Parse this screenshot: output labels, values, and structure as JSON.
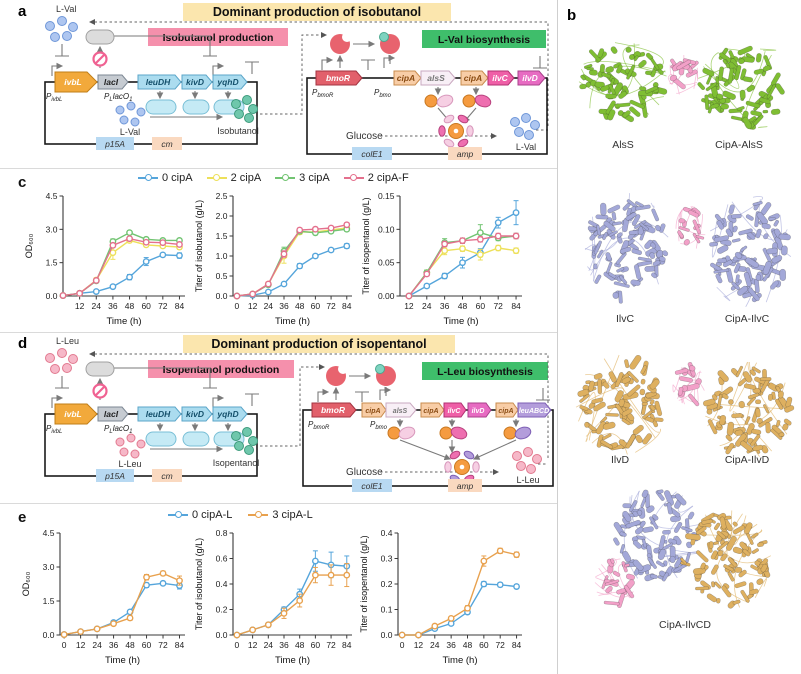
{
  "figure": {
    "panel_labels": {
      "a": "a",
      "b": "b",
      "c": "c",
      "d": "d",
      "e": "e"
    }
  },
  "panel_a": {
    "title": "Dominant production of isobutanol",
    "production_label": "Isobutanol production",
    "biosynthesis_label": "L-Val biosynthesis",
    "feedback_metabolite": "L-Val",
    "plasmid1": {
      "promoter1": {
        "p": "P",
        "sub": "ivbL"
      },
      "promoter2": {
        "p": "P",
        "sub1": "L",
        "mid": "lacO",
        "sub2": "1"
      },
      "genes": {
        "ivbL": "ivbL",
        "lacI": "lacI",
        "leuDH": "leuDH",
        "kivD": "kivD",
        "yqhD": "yqhD"
      },
      "metabolite": "L-Val",
      "product": "Isobutanol",
      "ori": "p15A",
      "marker": "cm"
    },
    "plasmid2": {
      "promoter1": {
        "p": "P",
        "sub": "bmoR"
      },
      "promoter2": {
        "p": "P",
        "sub": "bmo"
      },
      "genes": {
        "bmoR": "bmoR",
        "cipA1": "cipA",
        "alsS": "alsS",
        "cipA2": "cipA",
        "ilvC": "ilvC",
        "ilvD": "ilvD"
      },
      "substrate": "Glucose",
      "product": "L-Val",
      "ori": "colE1",
      "marker": "amp"
    }
  },
  "panel_d": {
    "title": "Dominant production of isopentanol",
    "production_label": "Isopentanol production",
    "biosynthesis_label": "L-Leu biosynthesis",
    "feedback_metabolite": "L-Leu",
    "plasmid1": {
      "promoter1": {
        "p": "P",
        "sub": "ivbL"
      },
      "promoter2": {
        "p": "P",
        "sub1": "L",
        "mid": "lacO",
        "sub2": "1"
      },
      "genes": {
        "ivbL": "ivbL",
        "lacI": "lacI",
        "leuDH": "leuDH",
        "kivD": "kivD",
        "yqhD": "yqhD"
      },
      "metabolite": "L-Leu",
      "product": "Isopentanol",
      "ori": "p15A",
      "marker": "cm"
    },
    "plasmid2": {
      "promoter1": {
        "p": "P",
        "sub": "bmoR"
      },
      "promoter2": {
        "p": "P",
        "sub": "bmo"
      },
      "genes": {
        "bmoR": "bmoR",
        "cipA1": "cipA",
        "alsS": "alsS",
        "cipA2": "cipA",
        "ilvC": "ilvC",
        "ilvD": "ilvD",
        "cipA3": "cipA",
        "leuABCD": "leuABCD"
      },
      "substrate": "Glucose",
      "product": "L-Leu",
      "ori": "colE1",
      "marker": "amp"
    }
  },
  "panel_b": {
    "labels": [
      "AlsS",
      "CipA-AlsS",
      "IlvC",
      "CipA-IlvC",
      "IlvD",
      "CipA-IlvD",
      "CipA-IlvCD"
    ],
    "colors": {
      "alsS": "#7FBE33",
      "cipA": "#F2A0C8",
      "ilvC": "#A3A8D8",
      "ilvD": "#DEB060"
    }
  },
  "chart_data": [
    {
      "type": "line",
      "title": "",
      "xlabel": "Time (h)",
      "ylabel": "OD₆₀₀",
      "xlim": [
        0,
        88
      ],
      "ylim": [
        0,
        4.5
      ],
      "xticks": [
        12,
        24,
        36,
        48,
        60,
        72,
        84
      ],
      "yticks": [
        0,
        1.5,
        3,
        4.5
      ],
      "ydec": 1,
      "series": [
        {
          "name": "0 cipA",
          "color": "#55A5DB",
          "x": [
            0,
            12,
            24,
            36,
            48,
            60,
            72,
            84
          ],
          "y": [
            0.02,
            0.12,
            0.2,
            0.42,
            0.85,
            1.55,
            1.85,
            1.82
          ],
          "err": [
            0,
            0,
            0,
            0.06,
            0.12,
            0.18,
            0.08,
            0.12
          ]
        },
        {
          "name": "2 cipA",
          "color": "#EDE05A",
          "x": [
            0,
            12,
            24,
            36,
            48,
            60,
            72,
            84
          ],
          "y": [
            0.02,
            0.12,
            0.72,
            1.95,
            2.5,
            2.3,
            2.25,
            2.2
          ],
          "err": [
            0,
            0,
            0.1,
            0.3,
            0.1,
            0.08,
            0.08,
            0.1
          ]
        },
        {
          "name": "3 cipA",
          "color": "#72C472",
          "x": [
            0,
            12,
            24,
            36,
            48,
            60,
            72,
            84
          ],
          "y": [
            0.02,
            0.12,
            0.68,
            2.45,
            2.85,
            2.55,
            2.5,
            2.5
          ],
          "err": [
            0,
            0,
            0.08,
            0.12,
            0.08,
            0.08,
            0.06,
            0.08
          ]
        },
        {
          "name": "2 cipA-F",
          "color": "#E4708D",
          "x": [
            0,
            12,
            24,
            36,
            48,
            60,
            72,
            84
          ],
          "y": [
            0.02,
            0.12,
            0.7,
            2.28,
            2.58,
            2.42,
            2.4,
            2.32
          ],
          "err": [
            0,
            0,
            0.08,
            0.1,
            0.08,
            0.06,
            0.06,
            0.08
          ]
        }
      ]
    },
    {
      "type": "line",
      "title": "",
      "xlabel": "Time (h)",
      "ylabel": "Titer of isobutanol (g/L)",
      "xlim": [
        -3,
        88
      ],
      "ylim": [
        0,
        2.5
      ],
      "xticks": [
        0,
        12,
        24,
        36,
        48,
        60,
        72,
        84
      ],
      "yticks": [
        0,
        0.5,
        1,
        1.5,
        2,
        2.5
      ],
      "ydec": 1,
      "series": [
        {
          "name": "0 cipA",
          "color": "#55A5DB",
          "x": [
            0,
            12,
            24,
            36,
            48,
            60,
            72,
            84
          ],
          "y": [
            0,
            0.02,
            0.1,
            0.3,
            0.75,
            1.0,
            1.15,
            1.25
          ],
          "err": [
            0,
            0,
            0.02,
            0.04,
            0.06,
            0.05,
            0.05,
            0.06
          ]
        },
        {
          "name": "2 cipA",
          "color": "#EDE05A",
          "x": [
            0,
            12,
            24,
            36,
            48,
            60,
            72,
            84
          ],
          "y": [
            0,
            0.05,
            0.3,
            1.0,
            1.6,
            1.6,
            1.65,
            1.7
          ],
          "err": [
            0,
            0,
            0.05,
            0.18,
            0.06,
            0.05,
            0.05,
            0.06
          ]
        },
        {
          "name": "3 cipA",
          "color": "#72C472",
          "x": [
            0,
            12,
            24,
            36,
            48,
            60,
            72,
            84
          ],
          "y": [
            0,
            0.05,
            0.28,
            1.12,
            1.62,
            1.58,
            1.62,
            1.67
          ],
          "err": [
            0,
            0,
            0.04,
            0.1,
            0.06,
            0.05,
            0.05,
            0.05
          ]
        },
        {
          "name": "2 cipA-F",
          "color": "#E4708D",
          "x": [
            0,
            12,
            24,
            36,
            48,
            60,
            72,
            84
          ],
          "y": [
            0,
            0.05,
            0.3,
            1.05,
            1.65,
            1.67,
            1.7,
            1.78
          ],
          "err": [
            0,
            0,
            0.04,
            0.08,
            0.05,
            0.05,
            0.05,
            0.05
          ]
        }
      ]
    },
    {
      "type": "line",
      "title": "",
      "xlabel": "Time (h)",
      "ylabel": "Titer of isopentanol (g/L)",
      "xlim": [
        6,
        88
      ],
      "ylim": [
        0,
        0.15
      ],
      "xticks": [
        12,
        24,
        36,
        48,
        60,
        72,
        84
      ],
      "yticks": [
        0,
        0.05,
        0.1,
        0.15
      ],
      "ydec": 2,
      "series": [
        {
          "name": "0 cipA",
          "color": "#55A5DB",
          "x": [
            12,
            24,
            36,
            48,
            60,
            72,
            84
          ],
          "y": [
            0,
            0.015,
            0.03,
            0.05,
            0.065,
            0.11,
            0.125
          ],
          "err": [
            0,
            0.003,
            0.004,
            0.008,
            0.006,
            0.008,
            0.018
          ]
        },
        {
          "name": "2 cipA",
          "color": "#EDE05A",
          "x": [
            12,
            24,
            36,
            48,
            60,
            72,
            84
          ],
          "y": [
            0,
            0.035,
            0.068,
            0.071,
            0.062,
            0.072,
            0.068
          ],
          "err": [
            0,
            0.004,
            0.006,
            0.004,
            0.008,
            0.004,
            0.004
          ]
        },
        {
          "name": "3 cipA",
          "color": "#72C472",
          "x": [
            12,
            24,
            36,
            48,
            60,
            72,
            84
          ],
          "y": [
            0,
            0.035,
            0.08,
            0.083,
            0.095,
            0.087,
            0.09
          ],
          "err": [
            0,
            0.004,
            0.006,
            0.004,
            0.012,
            0.004,
            0.004
          ]
        },
        {
          "name": "2 cipA-F",
          "color": "#E4708D",
          "x": [
            12,
            24,
            36,
            48,
            60,
            72,
            84
          ],
          "y": [
            0,
            0.033,
            0.078,
            0.083,
            0.085,
            0.09,
            0.09
          ],
          "err": [
            0,
            0.003,
            0.004,
            0.004,
            0.004,
            0.004,
            0.004
          ]
        }
      ]
    },
    {
      "type": "line",
      "title": "",
      "xlabel": "Time (h)",
      "ylabel": "OD₆₀₀",
      "xlim": [
        -3,
        88
      ],
      "ylim": [
        0,
        4.5
      ],
      "xticks": [
        0,
        12,
        24,
        36,
        48,
        60,
        72,
        84
      ],
      "yticks": [
        0,
        1.5,
        3,
        4.5
      ],
      "ydec": 1,
      "series": [
        {
          "name": "0 cipA-L",
          "color": "#55A5DB",
          "x": [
            0,
            12,
            24,
            36,
            48,
            60,
            72,
            84
          ],
          "y": [
            0.02,
            0.15,
            0.27,
            0.55,
            1.02,
            2.2,
            2.28,
            2.18
          ],
          "err": [
            0,
            0,
            0,
            0,
            0.08,
            0.1,
            0.08,
            0.15
          ]
        },
        {
          "name": "3 cipA-L",
          "color": "#E8A14E",
          "x": [
            0,
            12,
            24,
            36,
            48,
            60,
            72,
            84
          ],
          "y": [
            0.02,
            0.15,
            0.27,
            0.5,
            0.75,
            2.55,
            2.72,
            2.4
          ],
          "err": [
            0,
            0,
            0,
            0.08,
            0.1,
            0.12,
            0.1,
            0.2
          ]
        }
      ]
    },
    {
      "type": "line",
      "title": "",
      "xlabel": "Time (h)",
      "ylabel": "Titer of isobutanol (g/L)",
      "xlim": [
        -3,
        88
      ],
      "ylim": [
        0,
        0.8
      ],
      "xticks": [
        0,
        12,
        24,
        36,
        48,
        60,
        72,
        84
      ],
      "yticks": [
        0,
        0.2,
        0.4,
        0.6,
        0.8
      ],
      "ydec": 1,
      "series": [
        {
          "name": "0 cipA-L",
          "color": "#55A5DB",
          "x": [
            0,
            12,
            24,
            36,
            48,
            60,
            72,
            84
          ],
          "y": [
            0,
            0.04,
            0.08,
            0.2,
            0.32,
            0.58,
            0.55,
            0.54
          ],
          "err": [
            0,
            0,
            0,
            0.02,
            0.04,
            0.08,
            0.1,
            0.08
          ]
        },
        {
          "name": "3 cipA-L",
          "color": "#E8A14E",
          "x": [
            0,
            12,
            24,
            36,
            48,
            60,
            72,
            84
          ],
          "y": [
            0,
            0.04,
            0.08,
            0.17,
            0.27,
            0.47,
            0.47,
            0.47
          ],
          "err": [
            0,
            0,
            0,
            0.04,
            0.05,
            0.06,
            0.08,
            0.09
          ]
        }
      ]
    },
    {
      "type": "line",
      "title": "",
      "xlabel": "Time (h)",
      "ylabel": "Titer of isopentanol (g/L)",
      "xlim": [
        -3,
        88
      ],
      "ylim": [
        0,
        0.4
      ],
      "xticks": [
        0,
        12,
        24,
        36,
        48,
        60,
        72,
        84
      ],
      "yticks": [
        0,
        0.1,
        0.2,
        0.3,
        0.4
      ],
      "ydec": 1,
      "series": [
        {
          "name": "0 cipA-L",
          "color": "#55A5DB",
          "x": [
            0,
            12,
            24,
            36,
            48,
            60,
            72,
            84
          ],
          "y": [
            0,
            0,
            0.025,
            0.045,
            0.09,
            0.2,
            0.197,
            0.19
          ],
          "err": [
            0,
            0,
            0.004,
            0.005,
            0.008,
            0.01,
            0.008,
            0.008
          ]
        },
        {
          "name": "3 cipA-L",
          "color": "#E8A14E",
          "x": [
            0,
            12,
            24,
            36,
            48,
            60,
            72,
            84
          ],
          "y": [
            0,
            0,
            0.035,
            0.065,
            0.105,
            0.29,
            0.33,
            0.315
          ],
          "err": [
            0,
            0,
            0.004,
            0.006,
            0.01,
            0.02,
            0.01,
            0.01
          ]
        }
      ]
    }
  ]
}
